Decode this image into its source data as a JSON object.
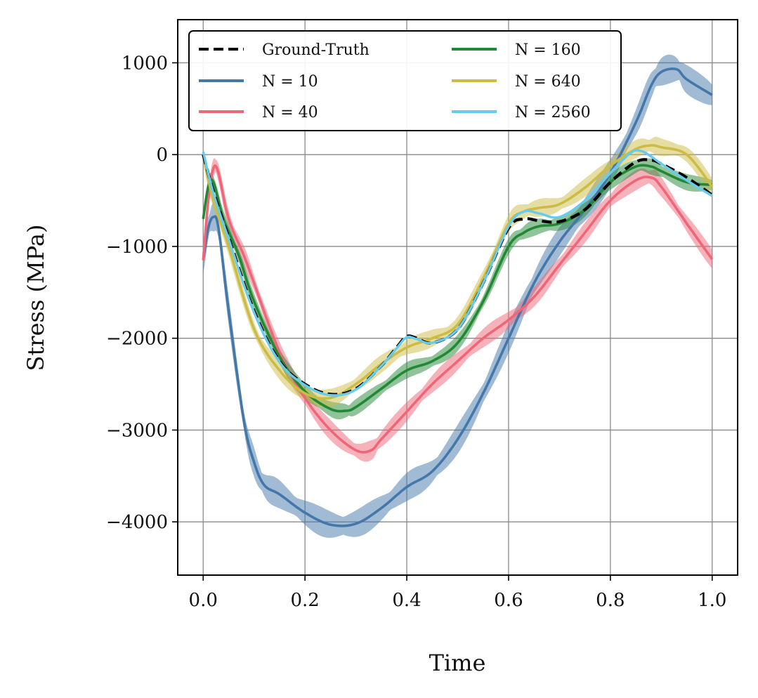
{
  "chart_data": {
    "type": "line",
    "title": "",
    "xlabel": "Time",
    "ylabel": "Stress (MPa)",
    "xlim": [
      -0.05,
      1.05
    ],
    "ylim": [
      -4580,
      1470
    ],
    "xticks": [
      0.0,
      0.2,
      0.4,
      0.6,
      0.8,
      1.0
    ],
    "xtick_labels": [
      "0.0",
      "0.2",
      "0.4",
      "0.6",
      "0.8",
      "1.0"
    ],
    "yticks": [
      1000,
      0,
      -1000,
      -2000,
      -3000,
      -4000
    ],
    "ytick_labels": [
      "1000",
      "0",
      "−1000",
      "−2000",
      "−3000",
      "−4000"
    ],
    "grid": true,
    "legend": {
      "position": "top-left",
      "columns": 2
    },
    "series": [
      {
        "name": "Ground-Truth",
        "color": "#000000",
        "style": "dashed",
        "x": [
          0.0,
          0.02,
          0.05,
          0.1,
          0.15,
          0.2,
          0.25,
          0.3,
          0.35,
          0.38,
          0.4,
          0.42,
          0.45,
          0.5,
          0.55,
          0.6,
          0.63,
          0.66,
          0.7,
          0.75,
          0.8,
          0.85,
          0.88,
          0.9,
          0.95,
          1.0
        ],
        "y": [
          0,
          -400,
          -900,
          -1700,
          -2250,
          -2500,
          -2610,
          -2550,
          -2300,
          -2100,
          -1980,
          -2000,
          -2050,
          -1900,
          -1400,
          -800,
          -700,
          -720,
          -730,
          -600,
          -300,
          -80,
          -60,
          -100,
          -250,
          -440
        ]
      },
      {
        "name": "N = 10",
        "color": "#4477AA",
        "style": "solid",
        "band": 160,
        "x": [
          0.0,
          0.01,
          0.02,
          0.03,
          0.05,
          0.08,
          0.1,
          0.12,
          0.15,
          0.2,
          0.25,
          0.3,
          0.35,
          0.4,
          0.45,
          0.5,
          0.55,
          0.6,
          0.65,
          0.7,
          0.75,
          0.8,
          0.85,
          0.88,
          0.9,
          0.93,
          0.95,
          1.0
        ],
        "y": [
          -1150,
          -800,
          -680,
          -800,
          -1700,
          -2900,
          -3350,
          -3600,
          -3700,
          -3900,
          -4030,
          -4020,
          -3850,
          -3620,
          -3450,
          -3100,
          -2600,
          -2000,
          -1400,
          -950,
          -600,
          -200,
          350,
          750,
          900,
          930,
          820,
          650
        ]
      },
      {
        "name": "N = 40",
        "color": "#EE6677",
        "style": "solid",
        "band": 110,
        "x": [
          0.0,
          0.01,
          0.02,
          0.03,
          0.05,
          0.08,
          0.1,
          0.15,
          0.2,
          0.25,
          0.3,
          0.33,
          0.35,
          0.4,
          0.45,
          0.5,
          0.55,
          0.6,
          0.65,
          0.7,
          0.75,
          0.8,
          0.85,
          0.88,
          0.9,
          0.95,
          1.0
        ],
        "y": [
          -1150,
          -500,
          -150,
          -200,
          -700,
          -1100,
          -1400,
          -2150,
          -2650,
          -3000,
          -3220,
          -3220,
          -3100,
          -2800,
          -2500,
          -2250,
          -2000,
          -1800,
          -1550,
          -1200,
          -850,
          -500,
          -280,
          -250,
          -350,
          -750,
          -1140
        ]
      },
      {
        "name": "N = 160",
        "color": "#228833",
        "style": "solid",
        "band": 90,
        "x": [
          0.0,
          0.01,
          0.02,
          0.04,
          0.07,
          0.1,
          0.15,
          0.2,
          0.25,
          0.28,
          0.3,
          0.35,
          0.4,
          0.45,
          0.5,
          0.55,
          0.6,
          0.63,
          0.66,
          0.7,
          0.75,
          0.8,
          0.85,
          0.88,
          0.9,
          0.95,
          1.0
        ],
        "y": [
          -700,
          -350,
          -300,
          -700,
          -1100,
          -1600,
          -2200,
          -2580,
          -2770,
          -2790,
          -2750,
          -2550,
          -2350,
          -2250,
          -2050,
          -1600,
          -1000,
          -850,
          -780,
          -750,
          -600,
          -300,
          -130,
          -130,
          -180,
          -300,
          -330
        ]
      },
      {
        "name": "N = 640",
        "color": "#CCBB44",
        "style": "solid",
        "band": 100,
        "x": [
          0.0,
          0.02,
          0.05,
          0.1,
          0.15,
          0.2,
          0.25,
          0.3,
          0.35,
          0.4,
          0.45,
          0.5,
          0.55,
          0.6,
          0.63,
          0.66,
          0.7,
          0.75,
          0.8,
          0.85,
          0.88,
          0.9,
          0.95,
          1.0
        ],
        "y": [
          0,
          -500,
          -1000,
          -1900,
          -2350,
          -2600,
          -2650,
          -2500,
          -2280,
          -2100,
          -2000,
          -1850,
          -1350,
          -750,
          -620,
          -580,
          -540,
          -360,
          -120,
          60,
          100,
          80,
          0,
          -350
        ]
      },
      {
        "name": "N = 2560",
        "color": "#66CCEE",
        "style": "solid",
        "x": [
          0.0,
          0.02,
          0.05,
          0.1,
          0.15,
          0.2,
          0.25,
          0.3,
          0.35,
          0.38,
          0.4,
          0.42,
          0.45,
          0.5,
          0.55,
          0.6,
          0.63,
          0.66,
          0.7,
          0.75,
          0.8,
          0.84,
          0.86,
          0.88,
          0.9,
          0.95,
          1.0
        ],
        "y": [
          30,
          -420,
          -920,
          -1720,
          -2260,
          -2510,
          -2620,
          -2560,
          -2300,
          -2110,
          -1990,
          -2010,
          -2050,
          -1900,
          -1400,
          -780,
          -620,
          -640,
          -680,
          -500,
          -200,
          20,
          40,
          -20,
          -100,
          -280,
          -450
        ]
      }
    ]
  }
}
